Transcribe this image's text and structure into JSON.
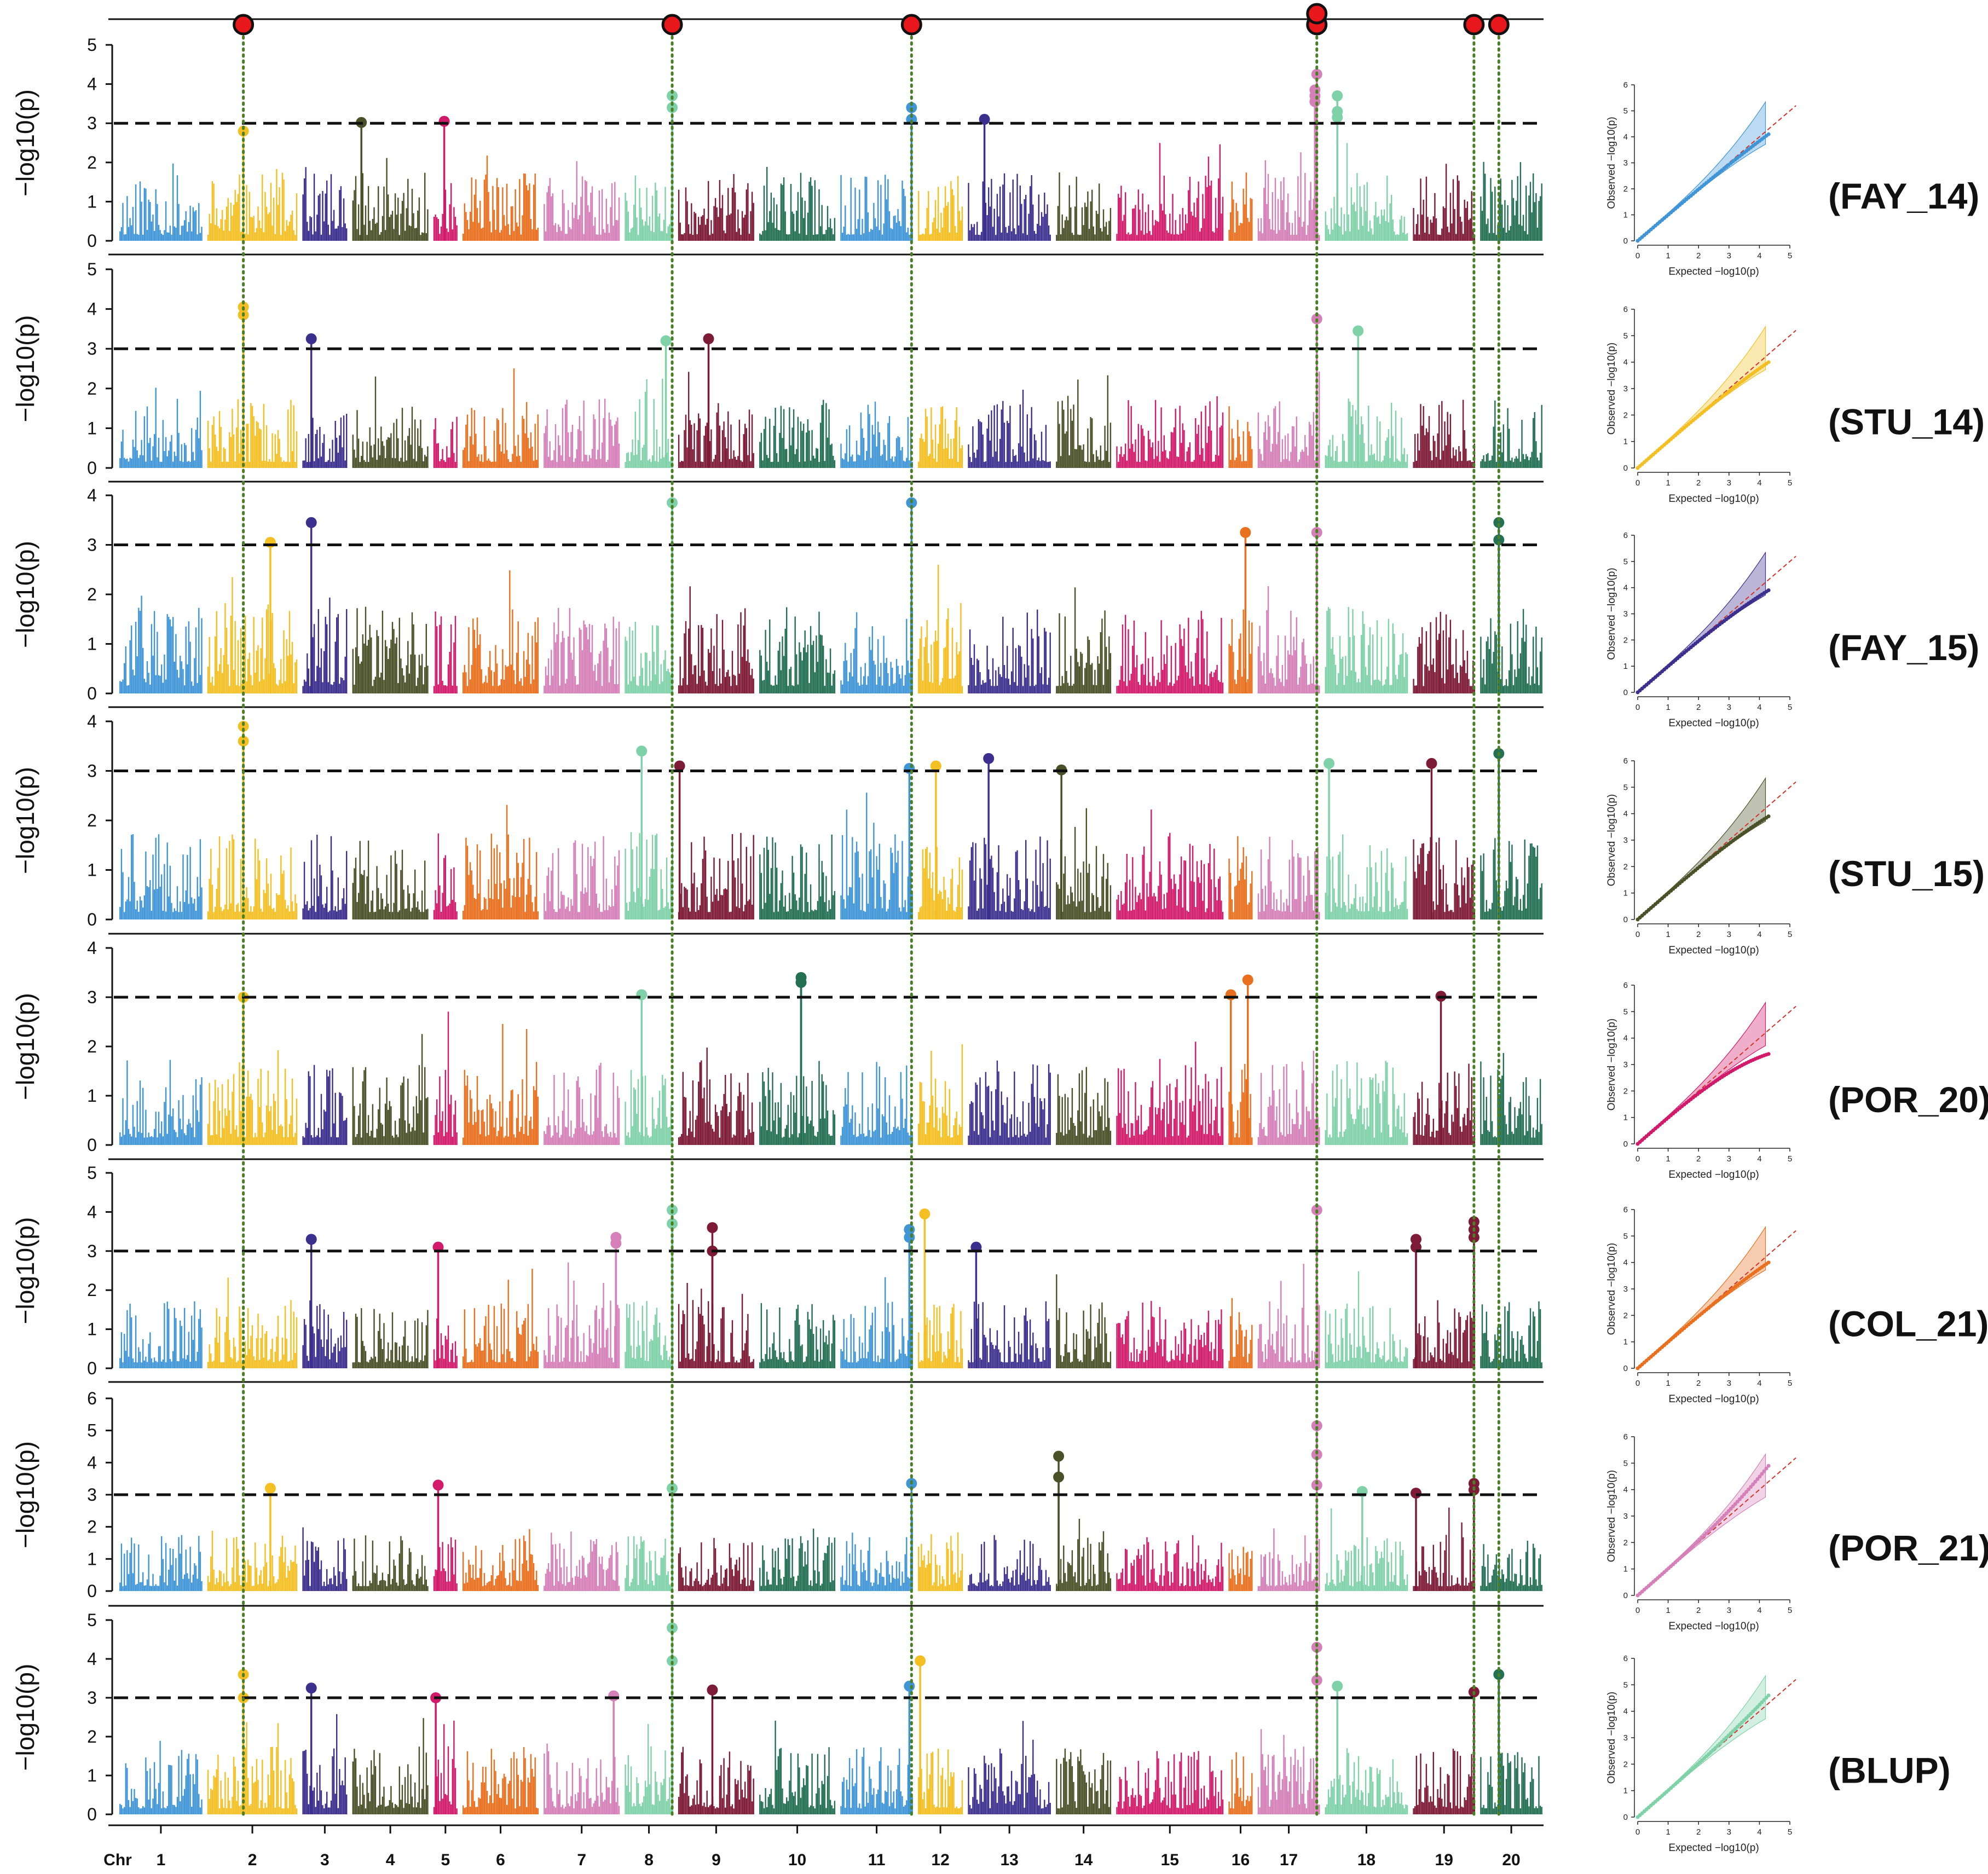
{
  "figure": {
    "threshold": 3.0,
    "colors": [
      "#3f95d6",
      "#f4bf23",
      "#3c2f8e",
      "#4a5128",
      "#d11a6a",
      "#e8701f",
      "#d580b8",
      "#7fd1a8",
      "#7d1a36",
      "#247055"
    ],
    "highlight_color": "#e8171b",
    "guide_color": "#4a7f25",
    "threshold_color": "#111111",
    "qq_line_color": "#d0342c"
  },
  "x_axis": {
    "label": "Chr",
    "chromosomes": [
      "1",
      "2",
      "3",
      "4",
      "5",
      "6",
      "7",
      "8",
      "9",
      "10",
      "11",
      "12",
      "13",
      "14",
      "15",
      "16",
      "17",
      "18",
      "19",
      "20"
    ],
    "chrom_lengths": [
      1.2,
      1.3,
      0.65,
      1.1,
      0.35,
      1.1,
      1.1,
      0.7,
      1.1,
      1.1,
      1.05,
      0.65,
      1.2,
      0.8,
      1.55,
      0.35,
      0.9,
      1.2,
      0.9,
      0.9
    ]
  },
  "highlighted_loci": [
    {
      "chrom": "2",
      "pos": 0.4
    },
    {
      "chrom": "8",
      "pos": 0.98
    },
    {
      "chrom": "11",
      "pos": 0.98
    },
    {
      "chrom": "17",
      "pos": 0.95
    },
    {
      "chrom": "19",
      "pos": 0.98
    },
    {
      "chrom": "20",
      "pos": 0.3
    }
  ],
  "chart_data": [
    {
      "type": "manhattan",
      "label": "(FAY_14)",
      "ylabel": "−log10(p)",
      "ylim": [
        0,
        5
      ],
      "yticks": [
        0,
        1,
        2,
        3,
        4,
        5
      ],
      "seed": 11,
      "peaks": [
        {
          "chrom": "2",
          "pos": 0.4,
          "value": 2.8
        },
        {
          "chrom": "4",
          "pos": 0.12,
          "value": 3.02
        },
        {
          "chrom": "5",
          "pos": 0.45,
          "value": 3.05
        },
        {
          "chrom": "8",
          "pos": 0.98,
          "value": 3.7
        },
        {
          "chrom": "8",
          "pos": 0.98,
          "value": 3.4
        },
        {
          "chrom": "11",
          "pos": 0.98,
          "value": 3.4
        },
        {
          "chrom": "11",
          "pos": 0.98,
          "value": 3.1
        },
        {
          "chrom": "13",
          "pos": 0.2,
          "value": 3.1
        },
        {
          "chrom": "17",
          "pos": 0.95,
          "value": 4.25
        },
        {
          "chrom": "17",
          "pos": 0.92,
          "value": 3.85
        },
        {
          "chrom": "17",
          "pos": 0.92,
          "value": 3.7
        },
        {
          "chrom": "17",
          "pos": 0.92,
          "value": 3.55
        },
        {
          "chrom": "18",
          "pos": 0.15,
          "value": 3.7
        },
        {
          "chrom": "18",
          "pos": 0.15,
          "value": 3.3
        },
        {
          "chrom": "18",
          "pos": 0.15,
          "value": 3.15
        }
      ]
    },
    {
      "type": "manhattan",
      "label": "(STU_14)",
      "ylabel": "−log10(p)",
      "ylim": [
        0,
        5
      ],
      "yticks": [
        0,
        1,
        2,
        3,
        4,
        5
      ],
      "seed": 23,
      "peaks": [
        {
          "chrom": "2",
          "pos": 0.4,
          "value": 4.05
        },
        {
          "chrom": "2",
          "pos": 0.4,
          "value": 3.85
        },
        {
          "chrom": "3",
          "pos": 0.2,
          "value": 3.25
        },
        {
          "chrom": "8",
          "pos": 0.85,
          "value": 3.2
        },
        {
          "chrom": "9",
          "pos": 0.4,
          "value": 3.25
        },
        {
          "chrom": "17",
          "pos": 0.95,
          "value": 3.75
        },
        {
          "chrom": "18",
          "pos": 0.4,
          "value": 3.45
        }
      ]
    },
    {
      "type": "manhattan",
      "label": "(FAY_15)",
      "ylabel": "−log10(p)",
      "ylim": [
        0,
        4
      ],
      "yticks": [
        0,
        1,
        2,
        3,
        4
      ],
      "seed": 37,
      "peaks": [
        {
          "chrom": "2",
          "pos": 0.7,
          "value": 3.05
        },
        {
          "chrom": "3",
          "pos": 0.2,
          "value": 3.45
        },
        {
          "chrom": "8",
          "pos": 0.98,
          "value": 3.85
        },
        {
          "chrom": "11",
          "pos": 0.98,
          "value": 3.85
        },
        {
          "chrom": "16",
          "pos": 0.7,
          "value": 3.25
        },
        {
          "chrom": "17",
          "pos": 0.95,
          "value": 3.25
        },
        {
          "chrom": "20",
          "pos": 0.3,
          "value": 3.45
        },
        {
          "chrom": "20",
          "pos": 0.3,
          "value": 3.1
        }
      ]
    },
    {
      "type": "manhattan",
      "label": "(STU_15)",
      "ylabel": "−log10(p)",
      "ylim": [
        0,
        4
      ],
      "yticks": [
        0,
        1,
        2,
        3,
        4
      ],
      "seed": 41,
      "peaks": [
        {
          "chrom": "2",
          "pos": 0.4,
          "value": 3.9
        },
        {
          "chrom": "2",
          "pos": 0.4,
          "value": 3.6
        },
        {
          "chrom": "8",
          "pos": 0.35,
          "value": 3.4
        },
        {
          "chrom": "9",
          "pos": 0.02,
          "value": 3.1
        },
        {
          "chrom": "11",
          "pos": 0.95,
          "value": 3.05
        },
        {
          "chrom": "12",
          "pos": 0.4,
          "value": 3.1
        },
        {
          "chrom": "13",
          "pos": 0.25,
          "value": 3.25
        },
        {
          "chrom": "14",
          "pos": 0.1,
          "value": 3.02
        },
        {
          "chrom": "18",
          "pos": 0.05,
          "value": 3.15
        },
        {
          "chrom": "19",
          "pos": 0.3,
          "value": 3.15
        },
        {
          "chrom": "20",
          "pos": 0.3,
          "value": 3.35
        }
      ]
    },
    {
      "type": "manhattan",
      "label": "(POR_20)",
      "ylabel": "−log10(p)",
      "ylim": [
        0,
        4
      ],
      "yticks": [
        0,
        1,
        2,
        3,
        4
      ],
      "seed": 53,
      "peaks": [
        {
          "chrom": "2",
          "pos": 0.4,
          "value": 3.0
        },
        {
          "chrom": "8",
          "pos": 0.35,
          "value": 3.05
        },
        {
          "chrom": "10",
          "pos": 0.55,
          "value": 3.4
        },
        {
          "chrom": "10",
          "pos": 0.55,
          "value": 3.3
        },
        {
          "chrom": "16",
          "pos": 0.1,
          "value": 3.05
        },
        {
          "chrom": "16",
          "pos": 0.8,
          "value": 3.35
        },
        {
          "chrom": "19",
          "pos": 0.45,
          "value": 3.02
        }
      ]
    },
    {
      "type": "manhattan",
      "label": "(COL_21)",
      "ylabel": "−log10(p)",
      "ylim": [
        0,
        5
      ],
      "yticks": [
        0,
        1,
        2,
        3,
        4,
        5
      ],
      "seed": 67,
      "peaks": [
        {
          "chrom": "3",
          "pos": 0.2,
          "value": 3.3
        },
        {
          "chrom": "5",
          "pos": 0.2,
          "value": 3.1
        },
        {
          "chrom": "7",
          "pos": 0.95,
          "value": 3.35
        },
        {
          "chrom": "7",
          "pos": 0.95,
          "value": 3.2
        },
        {
          "chrom": "8",
          "pos": 0.98,
          "value": 4.05
        },
        {
          "chrom": "8",
          "pos": 0.98,
          "value": 3.7
        },
        {
          "chrom": "9",
          "pos": 0.45,
          "value": 3.6
        },
        {
          "chrom": "9",
          "pos": 0.45,
          "value": 3.0
        },
        {
          "chrom": "11",
          "pos": 0.95,
          "value": 3.55
        },
        {
          "chrom": "11",
          "pos": 0.95,
          "value": 3.35
        },
        {
          "chrom": "12",
          "pos": 0.15,
          "value": 3.95
        },
        {
          "chrom": "13",
          "pos": 0.1,
          "value": 3.1
        },
        {
          "chrom": "17",
          "pos": 0.95,
          "value": 4.05
        },
        {
          "chrom": "19",
          "pos": 0.05,
          "value": 3.3
        },
        {
          "chrom": "19",
          "pos": 0.05,
          "value": 3.1
        },
        {
          "chrom": "19",
          "pos": 0.98,
          "value": 3.75
        },
        {
          "chrom": "19",
          "pos": 0.98,
          "value": 3.55
        },
        {
          "chrom": "19",
          "pos": 0.98,
          "value": 3.35
        }
      ]
    },
    {
      "type": "manhattan",
      "label": "(POR_21)",
      "ylabel": "−log10(p)",
      "ylim": [
        0,
        6
      ],
      "yticks": [
        0,
        1,
        2,
        3,
        4,
        5,
        6
      ],
      "seed": 79,
      "peaks": [
        {
          "chrom": "2",
          "pos": 0.7,
          "value": 3.2
        },
        {
          "chrom": "5",
          "pos": 0.2,
          "value": 3.3
        },
        {
          "chrom": "8",
          "pos": 0.98,
          "value": 3.2
        },
        {
          "chrom": "11",
          "pos": 0.98,
          "value": 3.35
        },
        {
          "chrom": "14",
          "pos": 0.05,
          "value": 4.2
        },
        {
          "chrom": "14",
          "pos": 0.05,
          "value": 3.55
        },
        {
          "chrom": "17",
          "pos": 0.95,
          "value": 5.15
        },
        {
          "chrom": "17",
          "pos": 0.95,
          "value": 4.25
        },
        {
          "chrom": "17",
          "pos": 0.95,
          "value": 3.3
        },
        {
          "chrom": "18",
          "pos": 0.45,
          "value": 3.1
        },
        {
          "chrom": "19",
          "pos": 0.05,
          "value": 3.05
        },
        {
          "chrom": "19",
          "pos": 0.98,
          "value": 3.35
        },
        {
          "chrom": "19",
          "pos": 0.98,
          "value": 3.15
        }
      ]
    },
    {
      "type": "manhattan",
      "label": "(BLUP)",
      "ylabel": "−log10(p)",
      "ylim": [
        0,
        5
      ],
      "yticks": [
        0,
        1,
        2,
        3,
        4,
        5
      ],
      "seed": 97,
      "peaks": [
        {
          "chrom": "2",
          "pos": 0.4,
          "value": 3.6
        },
        {
          "chrom": "2",
          "pos": 0.4,
          "value": 3.0
        },
        {
          "chrom": "3",
          "pos": 0.2,
          "value": 3.25
        },
        {
          "chrom": "5",
          "pos": 0.1,
          "value": 3.0
        },
        {
          "chrom": "7",
          "pos": 0.92,
          "value": 3.05
        },
        {
          "chrom": "8",
          "pos": 0.98,
          "value": 4.8
        },
        {
          "chrom": "8",
          "pos": 0.98,
          "value": 3.95
        },
        {
          "chrom": "9",
          "pos": 0.45,
          "value": 3.2
        },
        {
          "chrom": "11",
          "pos": 0.95,
          "value": 3.3
        },
        {
          "chrom": "12",
          "pos": 0.05,
          "value": 3.95
        },
        {
          "chrom": "17",
          "pos": 0.95,
          "value": 4.3
        },
        {
          "chrom": "17",
          "pos": 0.95,
          "value": 3.45
        },
        {
          "chrom": "18",
          "pos": 0.15,
          "value": 3.3
        },
        {
          "chrom": "19",
          "pos": 0.98,
          "value": 3.15
        },
        {
          "chrom": "20",
          "pos": 0.3,
          "value": 3.6
        }
      ]
    }
  ],
  "qq": {
    "type": "scatter",
    "xlabel": "Expected  −log10(p)",
    "ylabel": "Observed  −log10(p)",
    "xlim": [
      0,
      5
    ],
    "ylim": [
      0,
      6
    ],
    "xticks": [
      "0",
      "1",
      "2",
      "3",
      "4",
      "5"
    ],
    "yticks": [
      "0",
      "1",
      "2",
      "3",
      "4",
      "5",
      "6"
    ],
    "panels": [
      {
        "color": "#3f95d6",
        "max_expected": 4.3,
        "max_observed": 4.1
      },
      {
        "color": "#f4bf23",
        "max_expected": 4.3,
        "max_observed": 4.0
      },
      {
        "color": "#3c2f8e",
        "max_expected": 4.3,
        "max_observed": 3.9
      },
      {
        "color": "#4a5128",
        "max_expected": 4.3,
        "max_observed": 3.9
      },
      {
        "color": "#d11a6a",
        "max_expected": 4.3,
        "max_observed": 3.4
      },
      {
        "color": "#e8701f",
        "max_expected": 4.3,
        "max_observed": 4.0
      },
      {
        "color": "#d580b8",
        "max_expected": 4.3,
        "max_observed": 4.9
      },
      {
        "color": "#7fd1a8",
        "max_expected": 4.3,
        "max_observed": 4.6
      }
    ]
  }
}
